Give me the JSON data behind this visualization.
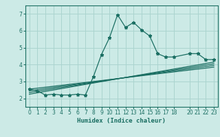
{
  "xlabel": "Humidex (Indice chaleur)",
  "background_color": "#cceae6",
  "grid_color": "#aad4cf",
  "line_color": "#1a6e62",
  "xlim": [
    -0.5,
    23.5
  ],
  "ylim": [
    1.5,
    7.5
  ],
  "xticks": [
    0,
    1,
    2,
    3,
    4,
    5,
    6,
    7,
    8,
    9,
    10,
    11,
    12,
    13,
    14,
    15,
    16,
    17,
    18,
    20,
    21,
    22,
    23
  ],
  "yticks": [
    2,
    3,
    4,
    5,
    6,
    7
  ],
  "main_x": [
    0,
    1,
    2,
    3,
    4,
    5,
    6,
    7,
    8,
    9,
    10,
    11,
    12,
    13,
    14,
    15,
    16,
    17,
    18,
    20,
    21,
    22,
    23
  ],
  "main_y": [
    2.55,
    2.45,
    2.2,
    2.25,
    2.2,
    2.2,
    2.25,
    2.2,
    3.3,
    4.6,
    5.6,
    6.95,
    6.2,
    6.5,
    6.05,
    5.7,
    4.65,
    4.45,
    4.45,
    4.65,
    4.65,
    4.3,
    4.3
  ],
  "reg_lines": [
    {
      "x": [
        0,
        23
      ],
      "y": [
        2.25,
        4.15
      ]
    },
    {
      "x": [
        0,
        23
      ],
      "y": [
        2.35,
        4.05
      ]
    },
    {
      "x": [
        0,
        23
      ],
      "y": [
        2.45,
        3.95
      ]
    },
    {
      "x": [
        0,
        23
      ],
      "y": [
        2.55,
        3.85
      ]
    }
  ],
  "tick_fontsize": 5.5,
  "xlabel_fontsize": 6.5
}
